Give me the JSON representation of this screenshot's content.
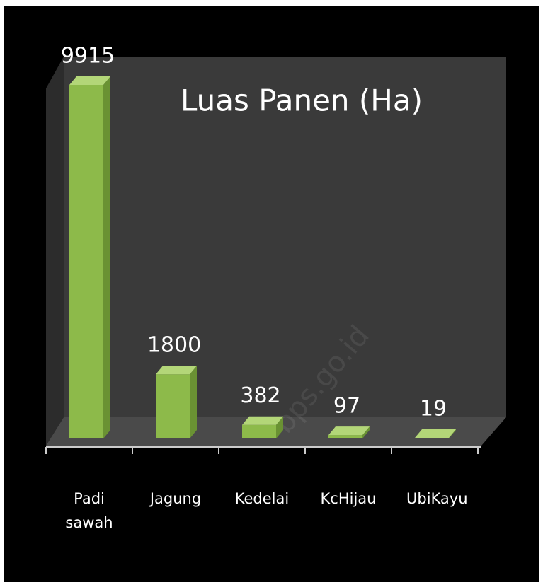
{
  "chart_data": {
    "type": "bar3d",
    "title": "Luas Panen (Ha)",
    "categories": [
      "Padi sawah",
      "Jagung",
      "Kedelai",
      "KcHijau",
      "UbiKayu"
    ],
    "values": [
      9915,
      1800,
      382,
      97,
      19
    ],
    "color": "#8dba4a",
    "watermark": "bps.go.id"
  }
}
